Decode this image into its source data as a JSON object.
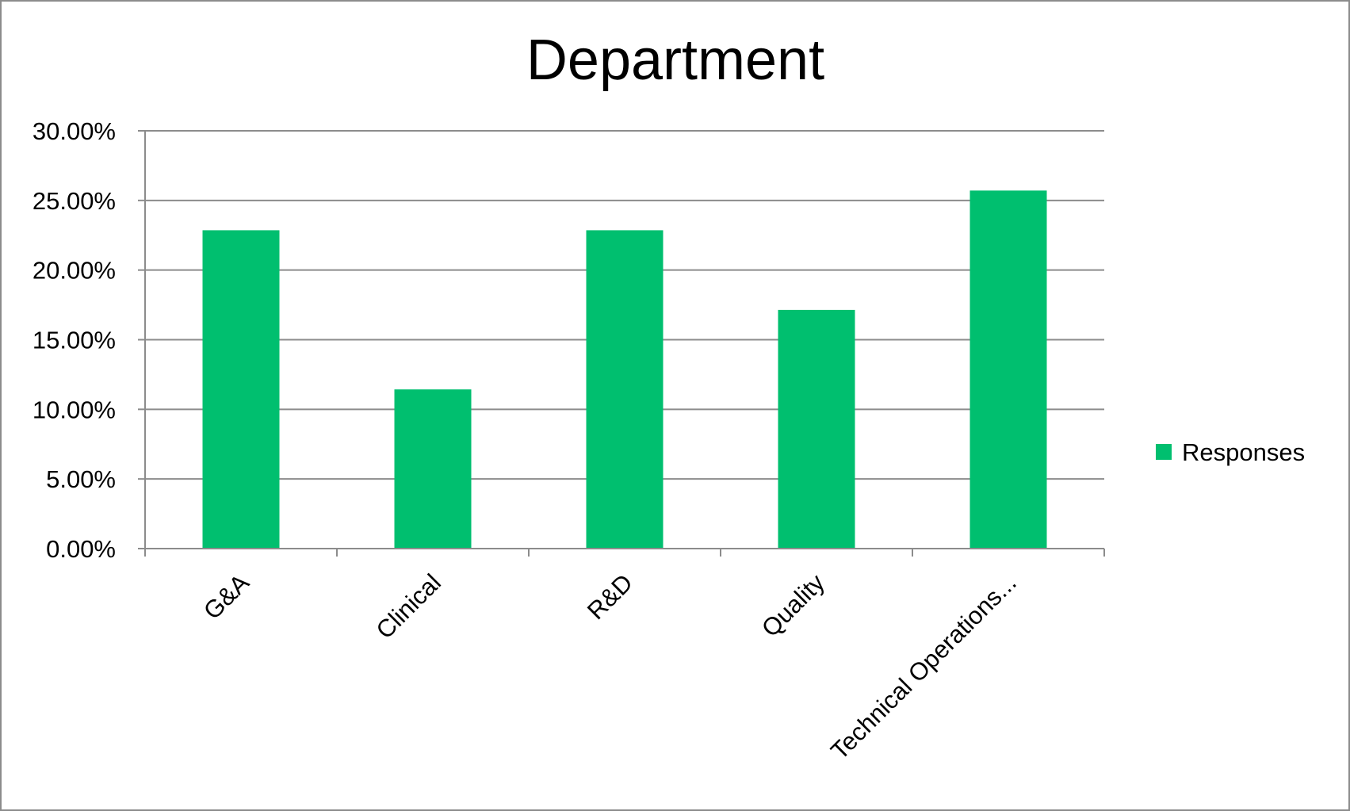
{
  "chart_data": {
    "type": "bar",
    "title": "Department",
    "xlabel": "",
    "ylabel": "",
    "categories": [
      "G&A",
      "Clinical",
      "R&D",
      "Quality",
      "Technical Operations..."
    ],
    "series": [
      {
        "name": "Responses",
        "values": [
          22.86,
          11.43,
          22.86,
          17.14,
          25.71
        ]
      }
    ],
    "ylim": [
      0,
      30
    ],
    "yticks": [
      0,
      5,
      10,
      15,
      20,
      25,
      30
    ],
    "ytick_labels": [
      "0.00%",
      "5.00%",
      "10.00%",
      "15.00%",
      "20.00%",
      "25.00%",
      "30.00%"
    ],
    "grid": true,
    "legend": {
      "position": "right",
      "entries": [
        "Responses"
      ]
    },
    "colors": {
      "bar": "#00bf6f",
      "gridline": "#8c8c8c",
      "axis": "#8c8c8c",
      "border": "#8c8c8c"
    }
  }
}
